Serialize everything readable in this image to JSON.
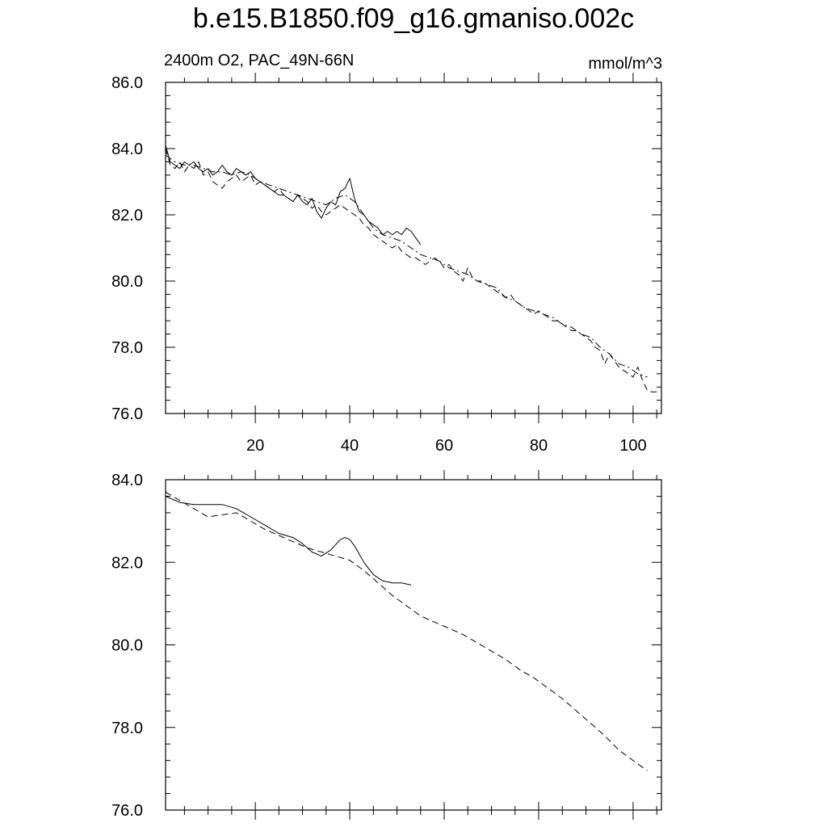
{
  "title": "b.e15.B1850.f09_g16.gmaniso.002c",
  "left_string": "2400m O2, PAC_49N-66N",
  "right_string": "mmol/m^3",
  "colors": {
    "line": "#000000",
    "background": "#ffffff"
  },
  "chart_data": [
    {
      "type": "line",
      "panel": "top",
      "xlim": [
        1,
        106
      ],
      "ylim": [
        76.0,
        86.0
      ],
      "xticks": [
        20,
        40,
        60,
        80,
        100
      ],
      "xtick_labels": [
        "20",
        "40",
        "60",
        "80",
        "100"
      ],
      "yticks": [
        76.0,
        78.0,
        80.0,
        82.0,
        84.0,
        86.0
      ],
      "ytick_labels": [
        "76.0",
        "78.0",
        "80.0",
        "82.0",
        "84.0",
        "86.0"
      ],
      "grid": false,
      "series": [
        {
          "style": "solid",
          "x": [
            1,
            2,
            3,
            4,
            5,
            6,
            7,
            8,
            9,
            10,
            11,
            12,
            13,
            14,
            15,
            16,
            17,
            18,
            19,
            20,
            21,
            22,
            23,
            24,
            25,
            26,
            27,
            28,
            29,
            30,
            31,
            32,
            33,
            34,
            35,
            36,
            37,
            38,
            39,
            40,
            41,
            42,
            43,
            44,
            45,
            46,
            47,
            48,
            49,
            50,
            51,
            52,
            53,
            54,
            55
          ],
          "y": [
            84.1,
            83.6,
            83.5,
            83.4,
            83.6,
            83.5,
            83.6,
            83.4,
            83.3,
            83.4,
            83.2,
            83.3,
            83.5,
            83.3,
            83.2,
            83.4,
            83.3,
            83.2,
            83.3,
            83.1,
            83.0,
            82.9,
            82.8,
            82.7,
            82.6,
            82.6,
            82.5,
            82.4,
            82.6,
            82.4,
            82.3,
            82.5,
            82.1,
            81.9,
            82.2,
            82.4,
            82.3,
            82.7,
            82.8,
            83.1,
            82.5,
            82.1,
            82.0,
            81.8,
            81.7,
            81.6,
            81.4,
            81.5,
            81.4,
            81.5,
            81.4,
            81.6,
            81.5,
            81.3,
            81.1
          ]
        },
        {
          "style": "dashed",
          "x": [
            1,
            2,
            3,
            4,
            5,
            6,
            7,
            8,
            9,
            10,
            11,
            12,
            13,
            14,
            15,
            16,
            17,
            18,
            19,
            20,
            21,
            22,
            23,
            24,
            25,
            26,
            27,
            28,
            29,
            30,
            31,
            32,
            33,
            34,
            35,
            36,
            37,
            38,
            39,
            40,
            41,
            42,
            43,
            44,
            45,
            46,
            47,
            48,
            49,
            50,
            51,
            52,
            53,
            54,
            55,
            56,
            57,
            58,
            59,
            60,
            61,
            62,
            63,
            64,
            65,
            66,
            67,
            68,
            69,
            70,
            71,
            72,
            73,
            74,
            75,
            76,
            77,
            78,
            79,
            80,
            81,
            82,
            83,
            84,
            85,
            86,
            87,
            88,
            89,
            90,
            91,
            92,
            93,
            94,
            95,
            96,
            97,
            98,
            99,
            100,
            101,
            102,
            103,
            104,
            105
          ],
          "y": [
            84.0,
            83.5,
            83.4,
            83.6,
            83.3,
            83.5,
            83.4,
            83.6,
            83.2,
            83.3,
            83.0,
            82.9,
            82.8,
            83.0,
            83.1,
            83.2,
            83.0,
            83.1,
            83.2,
            82.9,
            83.0,
            82.9,
            82.8,
            82.7,
            82.8,
            82.6,
            82.5,
            82.4,
            82.6,
            82.5,
            82.4,
            82.2,
            82.3,
            82.1,
            82.0,
            82.1,
            82.2,
            82.3,
            82.2,
            82.1,
            82.0,
            81.9,
            81.7,
            81.6,
            81.4,
            81.3,
            81.2,
            81.1,
            81.0,
            81.1,
            80.9,
            80.8,
            80.7,
            80.7,
            80.6,
            80.5,
            80.6,
            80.7,
            80.6,
            80.4,
            80.5,
            80.3,
            80.2,
            80.0,
            80.4,
            80.1,
            80.0,
            80.0,
            79.9,
            79.8,
            79.7,
            79.6,
            79.5,
            79.6,
            79.4,
            79.3,
            79.2,
            79.1,
            79.0,
            79.1,
            79.0,
            78.9,
            78.8,
            78.8,
            78.7,
            78.6,
            78.5,
            78.5,
            78.4,
            78.3,
            78.2,
            78.0,
            77.9,
            77.5,
            77.8,
            77.6,
            77.4,
            77.3,
            77.2,
            77.1,
            77.4,
            77.0,
            76.7,
            76.65,
            76.65
          ]
        },
        {
          "style": "dashdot",
          "x": [
            1,
            3,
            5,
            7,
            9,
            11,
            13,
            15,
            17,
            19,
            21,
            23,
            25,
            27,
            29,
            31,
            33,
            35,
            37,
            39,
            41,
            43,
            45,
            47,
            49,
            51,
            53,
            55,
            57,
            59,
            61,
            63,
            65,
            67,
            69,
            71,
            73,
            75,
            77,
            79,
            81,
            83,
            85,
            87,
            89,
            91,
            93,
            95,
            97,
            99,
            101,
            103
          ],
          "y": [
            83.8,
            83.6,
            83.5,
            83.5,
            83.4,
            83.3,
            83.3,
            83.2,
            83.3,
            83.2,
            83.0,
            82.9,
            82.8,
            82.7,
            82.6,
            82.5,
            82.4,
            82.3,
            82.5,
            82.6,
            82.4,
            82.0,
            81.6,
            81.4,
            81.3,
            81.2,
            81.0,
            80.8,
            80.7,
            80.6,
            80.4,
            80.3,
            80.2,
            80.0,
            79.9,
            79.8,
            79.5,
            79.4,
            79.2,
            79.1,
            79.0,
            78.9,
            78.7,
            78.6,
            78.4,
            78.3,
            78.0,
            77.8,
            77.5,
            77.4,
            77.2,
            77.1
          ]
        }
      ]
    },
    {
      "type": "line",
      "panel": "bottom",
      "xlim": [
        1,
        106
      ],
      "ylim": [
        76.0,
        84.0
      ],
      "xticks": [
        20,
        40,
        60,
        80,
        100
      ],
      "yticks": [
        76.0,
        78.0,
        80.0,
        82.0,
        84.0
      ],
      "ytick_labels": [
        "76.0",
        "78.0",
        "80.0",
        "82.0",
        "84.0"
      ],
      "grid": false,
      "series": [
        {
          "style": "solid",
          "x": [
            1,
            4,
            7,
            10,
            13,
            16,
            19,
            22,
            25,
            28,
            30,
            32,
            34,
            36,
            38,
            39,
            40,
            41,
            43,
            45,
            47,
            49,
            51,
            53
          ],
          "y": [
            83.6,
            83.45,
            83.4,
            83.4,
            83.4,
            83.3,
            83.1,
            82.9,
            82.7,
            82.6,
            82.45,
            82.25,
            82.15,
            82.3,
            82.55,
            82.6,
            82.55,
            82.4,
            82.0,
            81.7,
            81.55,
            81.5,
            81.5,
            81.45
          ]
        },
        {
          "style": "dashed",
          "x": [
            1,
            4,
            7,
            10,
            13,
            16,
            19,
            22,
            25,
            28,
            31,
            34,
            37,
            40,
            43,
            46,
            49,
            52,
            55,
            58,
            61,
            64,
            67,
            70,
            73,
            76,
            79,
            82,
            85,
            88,
            91,
            94,
            97,
            100,
            103
          ],
          "y": [
            83.7,
            83.5,
            83.3,
            83.1,
            83.15,
            83.2,
            83.0,
            82.8,
            82.65,
            82.5,
            82.35,
            82.25,
            82.15,
            82.05,
            81.8,
            81.5,
            81.2,
            80.95,
            80.7,
            80.55,
            80.4,
            80.25,
            80.05,
            79.85,
            79.65,
            79.4,
            79.2,
            78.95,
            78.7,
            78.4,
            78.1,
            77.8,
            77.45,
            77.2,
            76.95
          ]
        }
      ]
    }
  ]
}
